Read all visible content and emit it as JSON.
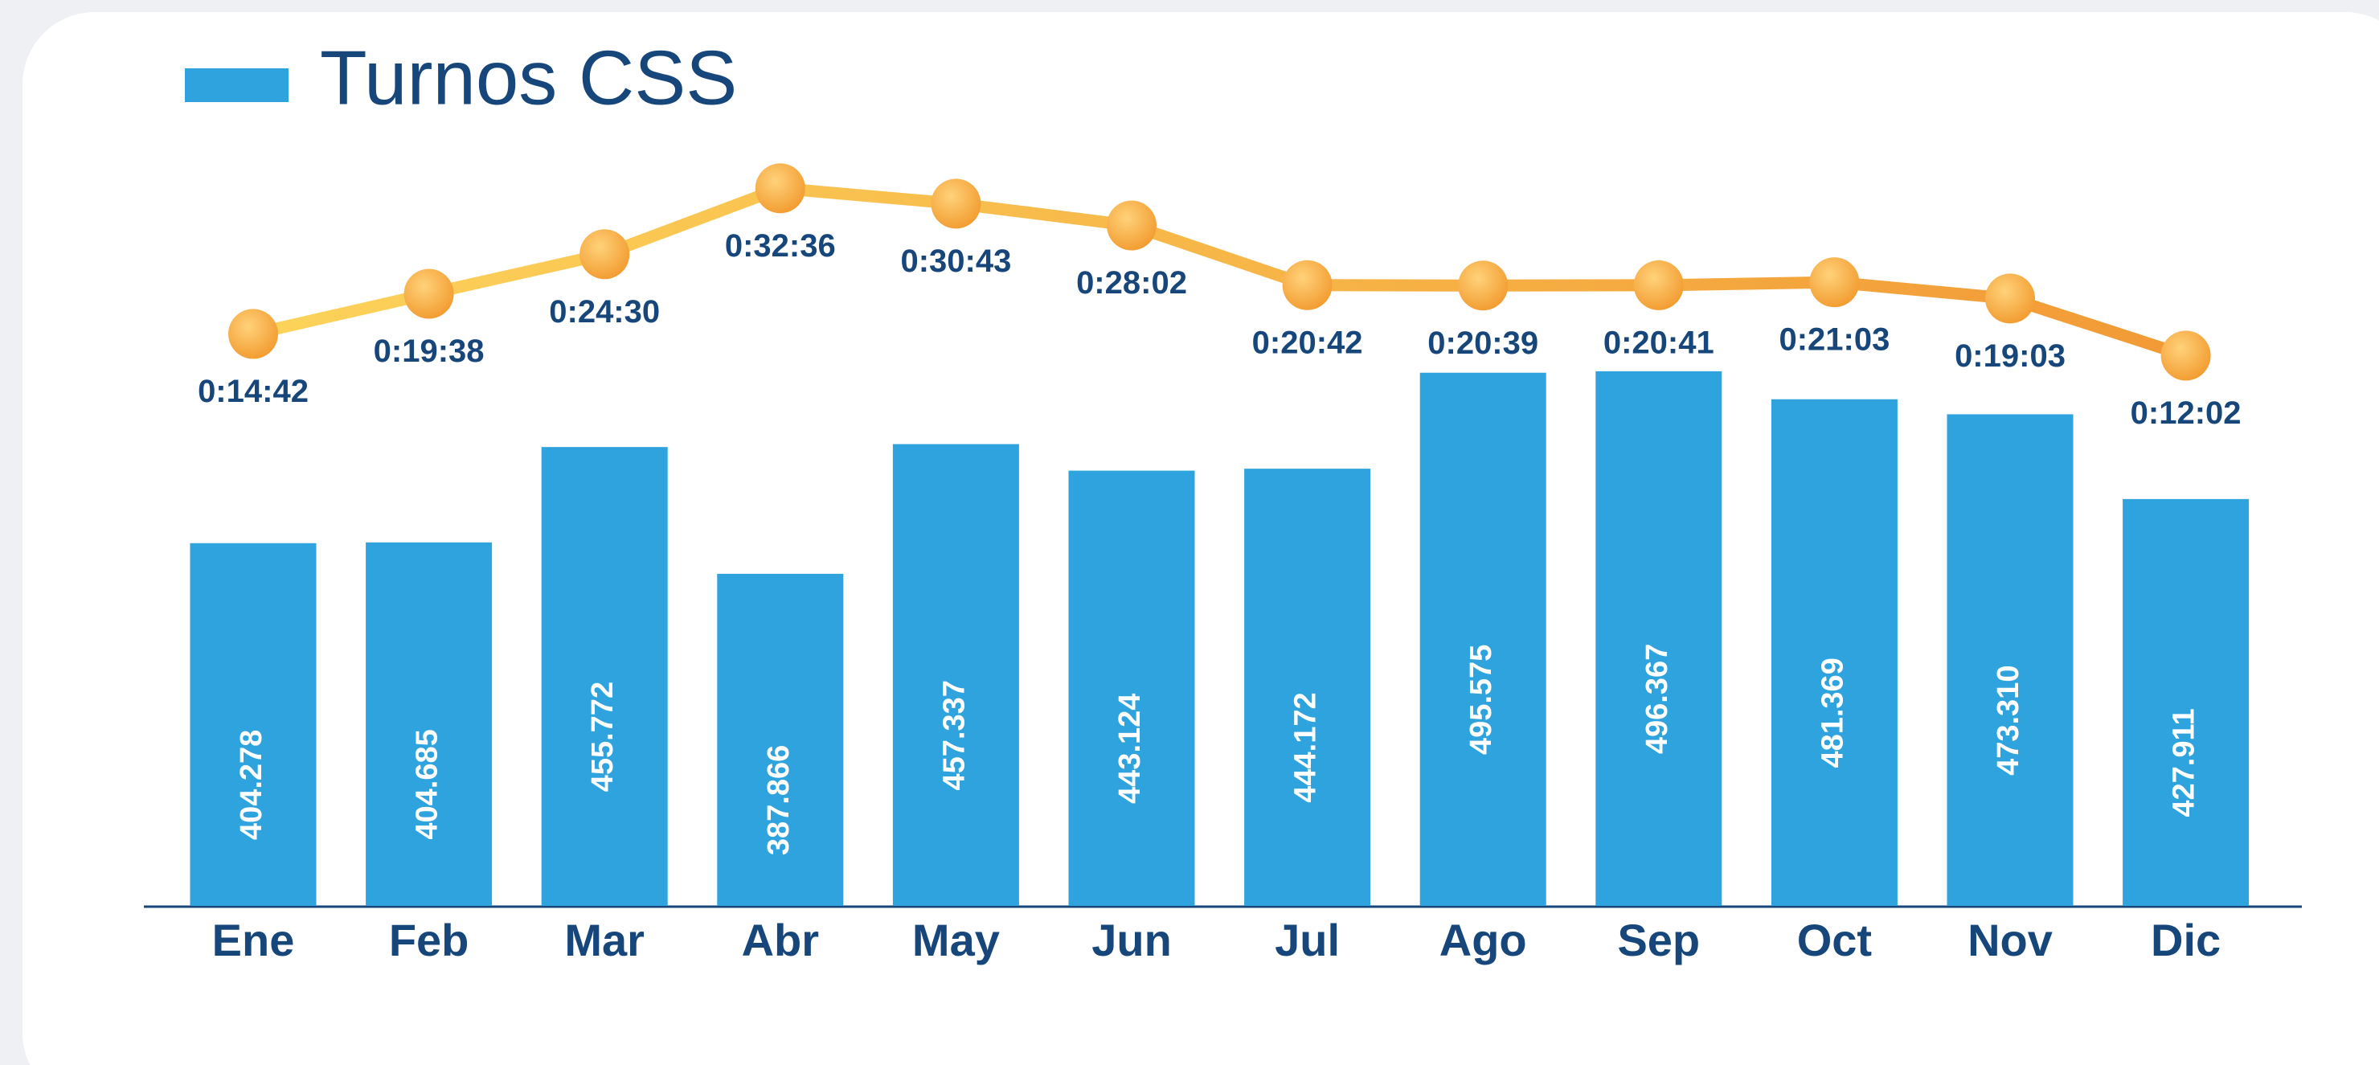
{
  "chart_data": {
    "type": "bar-line",
    "legend": "Turnos CSS",
    "categories": [
      "Ene",
      "Feb",
      "Mar",
      "Abr",
      "May",
      "Jun",
      "Jul",
      "Ago",
      "Sep",
      "Oct",
      "Nov",
      "Dic"
    ],
    "series": [
      {
        "name": "Turnos CSS",
        "color": "#2fa3de",
        "type": "bar",
        "values": [
          404278,
          404685,
          455772,
          387866,
          457337,
          443124,
          444172,
          495575,
          496367,
          481369,
          473310,
          427911
        ],
        "value_labels": [
          "404.278",
          "404.685",
          "455.772",
          "387.866",
          "457.337",
          "443.124",
          "444.172",
          "495.575",
          "496.367",
          "481.369",
          "473.310",
          "427.911"
        ]
      },
      {
        "color": "#f5a83a",
        "type": "line",
        "axis": "y2",
        "values": [
          882,
          1178,
          1470,
          1956,
          1843,
          1682,
          1242,
          1239,
          1241,
          1263,
          1143,
          722
        ],
        "value_labels": [
          "0:14:42",
          "0:19:38",
          "0:24:30",
          "0:32:36",
          "0:30:43",
          "0:28:02",
          "0:20:42",
          "0:20:39",
          "0:20:41",
          "0:21:03",
          "0:19:03",
          "0:12:02"
        ]
      }
    ],
    "ylim": [
      210000,
      520000
    ],
    "y2lim": [
      600,
      2100
    ]
  }
}
